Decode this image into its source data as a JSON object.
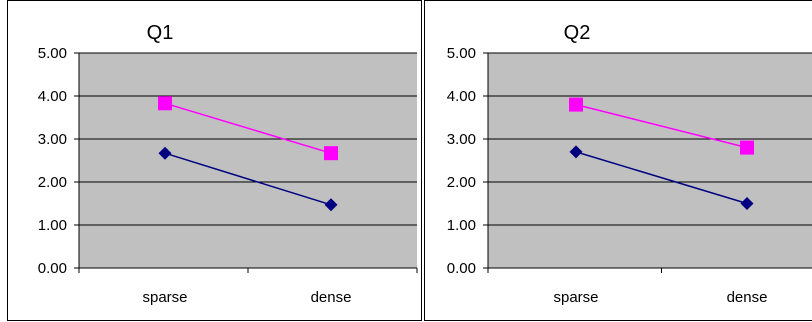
{
  "chart_data": [
    {
      "type": "line",
      "title": "Q1",
      "categories": [
        "sparse",
        "dense"
      ],
      "ylim": [
        0,
        5
      ],
      "ytick_labels": [
        "0.00",
        "1.00",
        "2.00",
        "3.00",
        "4.00",
        "5.00"
      ],
      "grid": true,
      "series": [
        {
          "values": [
            3.83,
            2.67
          ],
          "color": "#ff00ff",
          "marker": "square"
        },
        {
          "values": [
            2.67,
            1.47
          ],
          "color": "#000080",
          "marker": "diamond"
        }
      ]
    },
    {
      "type": "line",
      "title": "Q2",
      "categories": [
        "sparse",
        "dense"
      ],
      "ylim": [
        0,
        5
      ],
      "ytick_labels": [
        "0.00",
        "1.00",
        "2.00",
        "3.00",
        "4.00",
        "5.00"
      ],
      "grid": true,
      "series": [
        {
          "values": [
            3.8,
            2.8
          ],
          "color": "#ff00ff",
          "marker": "square"
        },
        {
          "values": [
            2.7,
            1.5
          ],
          "color": "#000080",
          "marker": "diamond"
        }
      ]
    }
  ],
  "colors": {
    "plot_background": "#c0c0c0",
    "gridline": "#000000",
    "chart_border": "#000000"
  }
}
